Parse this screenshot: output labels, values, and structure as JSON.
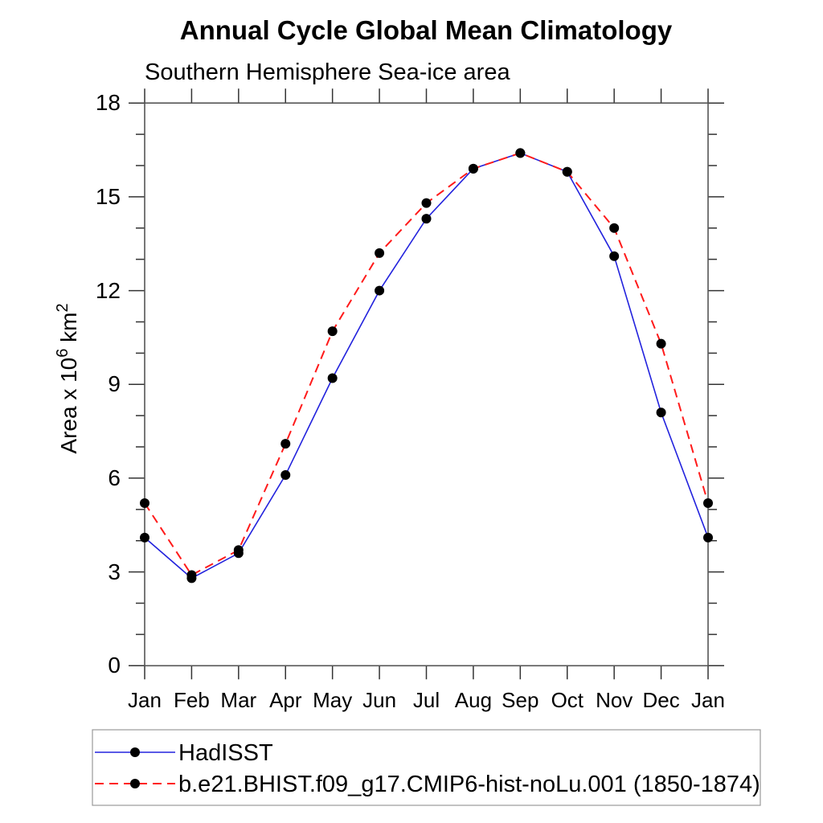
{
  "chart_data": {
    "type": "line",
    "title": "Annual Cycle Global Mean Climatology",
    "subtitle": "Southern Hemisphere Sea-ice area",
    "xlabel": "",
    "ylabel": "Area x 10^6 km^2",
    "ylim": [
      0,
      18
    ],
    "yticks": [
      0,
      3,
      6,
      9,
      12,
      15,
      18
    ],
    "minor_tick_interval": 1,
    "grid": false,
    "legend_position": "bottom-left-box",
    "categories": [
      "Jan",
      "Feb",
      "Mar",
      "Apr",
      "May",
      "Jun",
      "Jul",
      "Aug",
      "Sep",
      "Oct",
      "Nov",
      "Dec",
      "Jan"
    ],
    "series": [
      {
        "name": "HadISST",
        "color": "#2222dd",
        "line_style": "solid",
        "marker": "black-filled-circle",
        "values": [
          4.1,
          2.8,
          3.6,
          6.1,
          9.2,
          12,
          14.3,
          15.9,
          16.4,
          15.8,
          13.1,
          8.1,
          4.1
        ]
      },
      {
        "name": "b.e21.BHIST.f09_g17.CMIP6-hist-noLu.001 (1850-1874)",
        "color": "#ff1a1a",
        "line_style": "dashed",
        "marker": "black-filled-circle",
        "values": [
          5.2,
          2.9,
          3.7,
          7.1,
          10.7,
          13.2,
          14.8,
          15.9,
          16.4,
          15.8,
          14,
          10.3,
          5.2
        ]
      }
    ]
  },
  "axes": {
    "ylabel_parts": {
      "prefix": "Area x 10",
      "exp": "6",
      "mid": " km",
      "exp2": "2"
    }
  }
}
